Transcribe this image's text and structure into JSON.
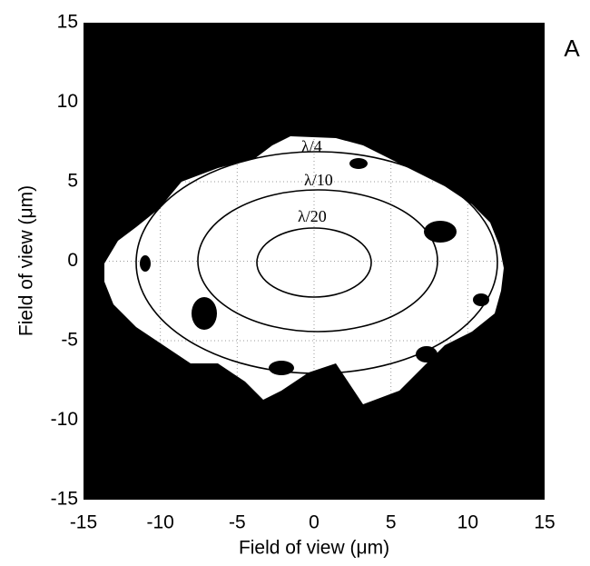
{
  "chart_data": {
    "type": "contour",
    "panel_label": "A",
    "xlabel": "Field of view (μm)",
    "ylabel": "Field of view (μm)",
    "contour_labels": [
      "λ/4",
      "λ/10",
      "λ/20"
    ],
    "xlim": [
      -15,
      15
    ],
    "ylim": [
      -15,
      15
    ],
    "xticks": [
      -15,
      -10,
      -5,
      0,
      5,
      10,
      15
    ],
    "yticks": [
      -15,
      -10,
      -5,
      0,
      5,
      10,
      15
    ],
    "grid": true
  }
}
